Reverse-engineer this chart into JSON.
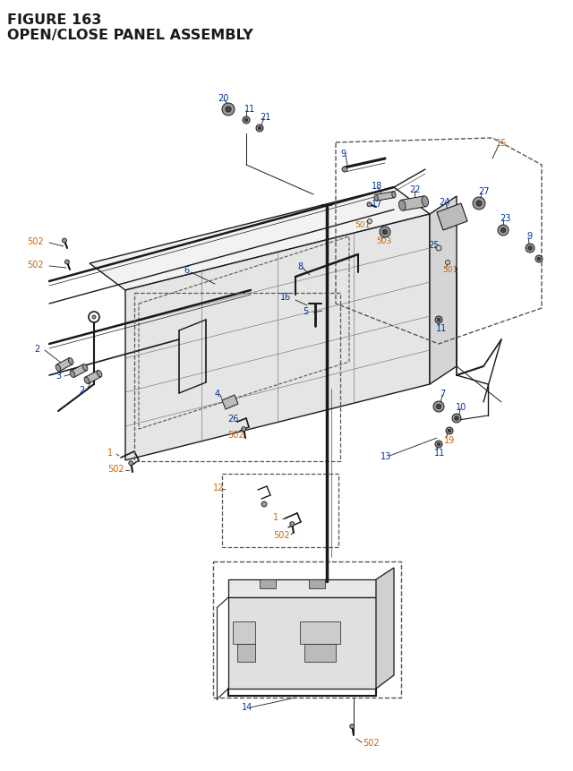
{
  "title_line1": "FIGURE 163",
  "title_line2": "OPEN/CLOSE PANEL ASSEMBLY",
  "bg_color": "#ffffff",
  "title_color": "#1c1c1c",
  "orange_color": "#cc6600",
  "blue_color": "#003399",
  "black_color": "#1a1a1a",
  "gray_color": "#666666",
  "light_gray": "#cccccc",
  "mid_gray": "#999999",
  "dashed_color": "#555555",
  "title_fontsize": 11.5
}
